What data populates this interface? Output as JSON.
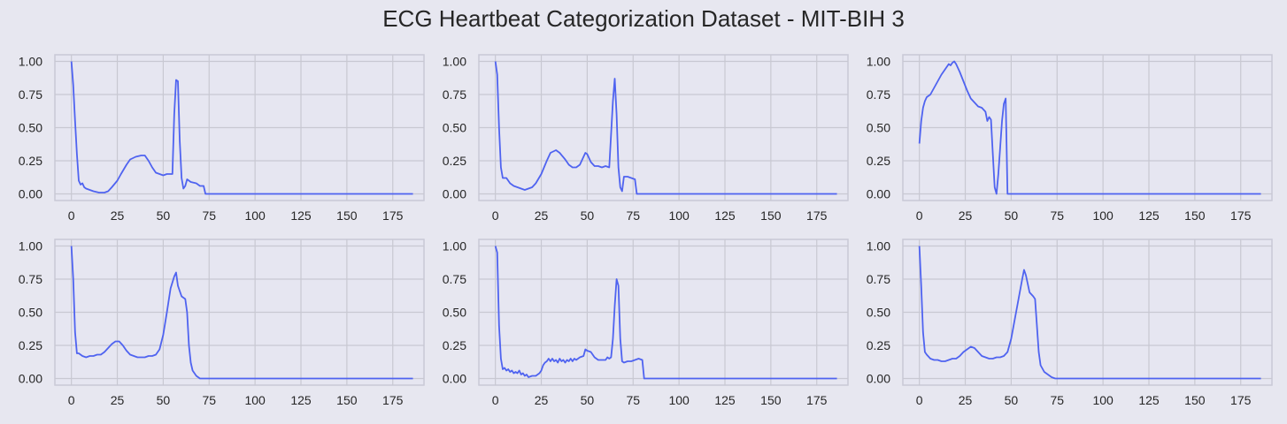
{
  "title": "ECG Heartbeat Categorization Dataset - MIT-BIH 3",
  "colors": {
    "background": "#e7e7f0",
    "panel": "#e6e6f1",
    "grid": "#c8c8d2",
    "line": "#4f63f0"
  },
  "chart_data": {
    "type": "line",
    "layout": "2 rows x 3 columns",
    "grid": true,
    "xlim": [
      -9,
      192
    ],
    "ylim": [
      -0.05,
      1.05
    ],
    "xticks": [
      0,
      25,
      50,
      75,
      100,
      125,
      150,
      175
    ],
    "yticks": [
      0.0,
      0.25,
      0.5,
      0.75,
      1.0
    ],
    "xtick_labels": [
      "0",
      "25",
      "50",
      "75",
      "100",
      "125",
      "150",
      "175"
    ],
    "ytick_labels": [
      "0.00",
      "0.25",
      "0.50",
      "0.75",
      "1.00"
    ],
    "x_end": 186,
    "panels": [
      {
        "points": [
          [
            0,
            1.0
          ],
          [
            1,
            0.82
          ],
          [
            2,
            0.55
          ],
          [
            3,
            0.3
          ],
          [
            4,
            0.1
          ],
          [
            5,
            0.07
          ],
          [
            6,
            0.08
          ],
          [
            7,
            0.05
          ],
          [
            8,
            0.04
          ],
          [
            10,
            0.03
          ],
          [
            12,
            0.02
          ],
          [
            15,
            0.01
          ],
          [
            18,
            0.01
          ],
          [
            20,
            0.02
          ],
          [
            22,
            0.05
          ],
          [
            25,
            0.1
          ],
          [
            27,
            0.15
          ],
          [
            30,
            0.22
          ],
          [
            32,
            0.26
          ],
          [
            35,
            0.28
          ],
          [
            38,
            0.29
          ],
          [
            40,
            0.29
          ],
          [
            42,
            0.25
          ],
          [
            44,
            0.2
          ],
          [
            46,
            0.16
          ],
          [
            48,
            0.15
          ],
          [
            50,
            0.14
          ],
          [
            52,
            0.15
          ],
          [
            54,
            0.15
          ],
          [
            55,
            0.15
          ],
          [
            56,
            0.6
          ],
          [
            57,
            0.86
          ],
          [
            58,
            0.85
          ],
          [
            59,
            0.4
          ],
          [
            60,
            0.12
          ],
          [
            61,
            0.04
          ],
          [
            62,
            0.06
          ],
          [
            63,
            0.11
          ],
          [
            65,
            0.09
          ],
          [
            68,
            0.08
          ],
          [
            70,
            0.06
          ],
          [
            72,
            0.06
          ],
          [
            73,
            0.0
          ],
          [
            186,
            0.0
          ]
        ]
      },
      {
        "points": [
          [
            0,
            1.0
          ],
          [
            1,
            0.9
          ],
          [
            2,
            0.5
          ],
          [
            3,
            0.2
          ],
          [
            4,
            0.12
          ],
          [
            6,
            0.12
          ],
          [
            8,
            0.08
          ],
          [
            10,
            0.06
          ],
          [
            12,
            0.05
          ],
          [
            14,
            0.04
          ],
          [
            16,
            0.03
          ],
          [
            18,
            0.04
          ],
          [
            20,
            0.05
          ],
          [
            22,
            0.08
          ],
          [
            25,
            0.15
          ],
          [
            28,
            0.25
          ],
          [
            30,
            0.31
          ],
          [
            33,
            0.33
          ],
          [
            35,
            0.31
          ],
          [
            38,
            0.26
          ],
          [
            40,
            0.22
          ],
          [
            42,
            0.2
          ],
          [
            44,
            0.2
          ],
          [
            46,
            0.22
          ],
          [
            48,
            0.28
          ],
          [
            49,
            0.31
          ],
          [
            50,
            0.3
          ],
          [
            52,
            0.24
          ],
          [
            54,
            0.21
          ],
          [
            56,
            0.21
          ],
          [
            58,
            0.2
          ],
          [
            60,
            0.21
          ],
          [
            62,
            0.2
          ],
          [
            63,
            0.45
          ],
          [
            64,
            0.7
          ],
          [
            65,
            0.87
          ],
          [
            66,
            0.6
          ],
          [
            67,
            0.2
          ],
          [
            68,
            0.05
          ],
          [
            69,
            0.02
          ],
          [
            70,
            0.13
          ],
          [
            72,
            0.13
          ],
          [
            74,
            0.12
          ],
          [
            76,
            0.11
          ],
          [
            77,
            0.0
          ],
          [
            186,
            0.0
          ]
        ]
      },
      {
        "points": [
          [
            0,
            0.38
          ],
          [
            1,
            0.55
          ],
          [
            2,
            0.65
          ],
          [
            3,
            0.7
          ],
          [
            4,
            0.73
          ],
          [
            6,
            0.75
          ],
          [
            8,
            0.8
          ],
          [
            10,
            0.85
          ],
          [
            12,
            0.9
          ],
          [
            14,
            0.94
          ],
          [
            16,
            0.98
          ],
          [
            17,
            0.97
          ],
          [
            18,
            0.99
          ],
          [
            19,
            1.0
          ],
          [
            20,
            0.98
          ],
          [
            22,
            0.92
          ],
          [
            24,
            0.85
          ],
          [
            26,
            0.78
          ],
          [
            28,
            0.72
          ],
          [
            30,
            0.69
          ],
          [
            32,
            0.66
          ],
          [
            34,
            0.65
          ],
          [
            36,
            0.62
          ],
          [
            37,
            0.55
          ],
          [
            38,
            0.58
          ],
          [
            39,
            0.56
          ],
          [
            40,
            0.3
          ],
          [
            41,
            0.05
          ],
          [
            42,
            0.0
          ],
          [
            43,
            0.15
          ],
          [
            44,
            0.35
          ],
          [
            45,
            0.55
          ],
          [
            46,
            0.68
          ],
          [
            47,
            0.72
          ],
          [
            48,
            0.0
          ],
          [
            186,
            0.0
          ]
        ]
      },
      {
        "points": [
          [
            0,
            1.0
          ],
          [
            1,
            0.75
          ],
          [
            2,
            0.35
          ],
          [
            3,
            0.19
          ],
          [
            4,
            0.19
          ],
          [
            6,
            0.17
          ],
          [
            8,
            0.16
          ],
          [
            10,
            0.17
          ],
          [
            12,
            0.17
          ],
          [
            14,
            0.18
          ],
          [
            16,
            0.18
          ],
          [
            18,
            0.2
          ],
          [
            20,
            0.23
          ],
          [
            22,
            0.26
          ],
          [
            24,
            0.28
          ],
          [
            26,
            0.28
          ],
          [
            28,
            0.25
          ],
          [
            30,
            0.21
          ],
          [
            32,
            0.18
          ],
          [
            34,
            0.17
          ],
          [
            36,
            0.16
          ],
          [
            38,
            0.16
          ],
          [
            40,
            0.16
          ],
          [
            42,
            0.17
          ],
          [
            44,
            0.17
          ],
          [
            46,
            0.18
          ],
          [
            48,
            0.22
          ],
          [
            50,
            0.33
          ],
          [
            52,
            0.5
          ],
          [
            54,
            0.68
          ],
          [
            56,
            0.77
          ],
          [
            57,
            0.8
          ],
          [
            58,
            0.7
          ],
          [
            60,
            0.62
          ],
          [
            62,
            0.6
          ],
          [
            63,
            0.5
          ],
          [
            64,
            0.25
          ],
          [
            65,
            0.12
          ],
          [
            66,
            0.06
          ],
          [
            68,
            0.02
          ],
          [
            70,
            0.0
          ],
          [
            186,
            0.0
          ]
        ]
      },
      {
        "points": [
          [
            0,
            1.0
          ],
          [
            1,
            0.95
          ],
          [
            2,
            0.4
          ],
          [
            3,
            0.15
          ],
          [
            4,
            0.07
          ],
          [
            5,
            0.08
          ],
          [
            6,
            0.06
          ],
          [
            7,
            0.07
          ],
          [
            8,
            0.05
          ],
          [
            9,
            0.06
          ],
          [
            10,
            0.04
          ],
          [
            11,
            0.05
          ],
          [
            12,
            0.04
          ],
          [
            13,
            0.06
          ],
          [
            14,
            0.03
          ],
          [
            15,
            0.04
          ],
          [
            16,
            0.02
          ],
          [
            17,
            0.03
          ],
          [
            18,
            0.01
          ],
          [
            20,
            0.02
          ],
          [
            22,
            0.02
          ],
          [
            24,
            0.04
          ],
          [
            25,
            0.06
          ],
          [
            26,
            0.1
          ],
          [
            27,
            0.12
          ],
          [
            28,
            0.13
          ],
          [
            29,
            0.15
          ],
          [
            30,
            0.13
          ],
          [
            31,
            0.15
          ],
          [
            32,
            0.13
          ],
          [
            33,
            0.14
          ],
          [
            34,
            0.12
          ],
          [
            35,
            0.15
          ],
          [
            36,
            0.13
          ],
          [
            37,
            0.14
          ],
          [
            38,
            0.12
          ],
          [
            39,
            0.14
          ],
          [
            40,
            0.13
          ],
          [
            41,
            0.15
          ],
          [
            42,
            0.13
          ],
          [
            43,
            0.15
          ],
          [
            44,
            0.14
          ],
          [
            46,
            0.16
          ],
          [
            48,
            0.17
          ],
          [
            49,
            0.22
          ],
          [
            50,
            0.21
          ],
          [
            52,
            0.2
          ],
          [
            54,
            0.16
          ],
          [
            56,
            0.14
          ],
          [
            58,
            0.14
          ],
          [
            60,
            0.14
          ],
          [
            61,
            0.16
          ],
          [
            62,
            0.15
          ],
          [
            63,
            0.16
          ],
          [
            64,
            0.3
          ],
          [
            65,
            0.55
          ],
          [
            66,
            0.75
          ],
          [
            67,
            0.7
          ],
          [
            68,
            0.3
          ],
          [
            69,
            0.13
          ],
          [
            70,
            0.12
          ],
          [
            72,
            0.13
          ],
          [
            74,
            0.13
          ],
          [
            76,
            0.14
          ],
          [
            78,
            0.15
          ],
          [
            80,
            0.14
          ],
          [
            81,
            0.0
          ],
          [
            186,
            0.0
          ]
        ]
      },
      {
        "points": [
          [
            0,
            1.0
          ],
          [
            1,
            0.7
          ],
          [
            2,
            0.35
          ],
          [
            3,
            0.2
          ],
          [
            4,
            0.18
          ],
          [
            6,
            0.15
          ],
          [
            8,
            0.14
          ],
          [
            10,
            0.14
          ],
          [
            12,
            0.13
          ],
          [
            14,
            0.13
          ],
          [
            16,
            0.14
          ],
          [
            18,
            0.15
          ],
          [
            20,
            0.15
          ],
          [
            22,
            0.17
          ],
          [
            24,
            0.2
          ],
          [
            26,
            0.22
          ],
          [
            28,
            0.24
          ],
          [
            30,
            0.23
          ],
          [
            32,
            0.2
          ],
          [
            34,
            0.17
          ],
          [
            36,
            0.16
          ],
          [
            38,
            0.15
          ],
          [
            40,
            0.15
          ],
          [
            42,
            0.16
          ],
          [
            44,
            0.16
          ],
          [
            46,
            0.17
          ],
          [
            48,
            0.2
          ],
          [
            50,
            0.3
          ],
          [
            52,
            0.45
          ],
          [
            54,
            0.6
          ],
          [
            56,
            0.75
          ],
          [
            57,
            0.82
          ],
          [
            58,
            0.78
          ],
          [
            60,
            0.65
          ],
          [
            62,
            0.62
          ],
          [
            63,
            0.6
          ],
          [
            64,
            0.4
          ],
          [
            65,
            0.2
          ],
          [
            66,
            0.1
          ],
          [
            68,
            0.05
          ],
          [
            70,
            0.03
          ],
          [
            72,
            0.01
          ],
          [
            74,
            0.0
          ],
          [
            186,
            0.0
          ]
        ]
      }
    ]
  }
}
